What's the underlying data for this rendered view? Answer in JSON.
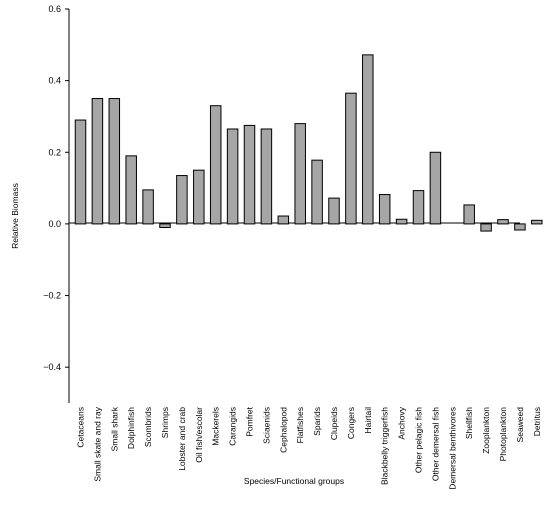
{
  "chart_data": {
    "type": "bar",
    "xlabel": "Species/Functional groups",
    "ylabel": "Relative Biomass",
    "ylim": [
      -0.5,
      0.6
    ],
    "yticks": [
      {
        "value": 0.6,
        "label": "0.6"
      },
      {
        "value": 0.4,
        "label": "0.4"
      },
      {
        "value": 0.2,
        "label": "0.2"
      },
      {
        "value": 0.0,
        "label": "0.0"
      },
      {
        "value": -0.2,
        "label": "−0.2"
      },
      {
        "value": -0.4,
        "label": "−0.4"
      }
    ],
    "grid": false,
    "bar_color": "#a6a6a6",
    "categories": [
      "Cetaceans",
      "Small skate and ray",
      "Small shark",
      "Dolphinfish",
      "Scombrids",
      "Shrimps",
      "Lobster and crab",
      "Oil fish/escolar",
      "Mackerels",
      "Carangids",
      "Pomfret",
      "Sciaenids",
      "Cephalopod",
      "Flatfishes",
      "Sparids",
      "Clupeids",
      "Congers",
      "Hairtail",
      "Blackbelly triggerfish",
      "Anchovy",
      "Other pelagic fish",
      "Other demersal fish",
      "Demersal benthivores",
      "Shellfish",
      "Zooplankton",
      "Photoplankton",
      "Seaweed",
      "Detritus"
    ],
    "values": [
      0.29,
      0.35,
      0.35,
      0.19,
      0.095,
      -0.01,
      0.135,
      0.15,
      0.33,
      0.265,
      0.275,
      0.265,
      0.022,
      0.28,
      0.178,
      0.072,
      0.365,
      0.472,
      0.082,
      0.013,
      0.093,
      0.2,
      0.0,
      0.053,
      -0.02,
      0.012,
      -0.017,
      0.01
    ]
  }
}
